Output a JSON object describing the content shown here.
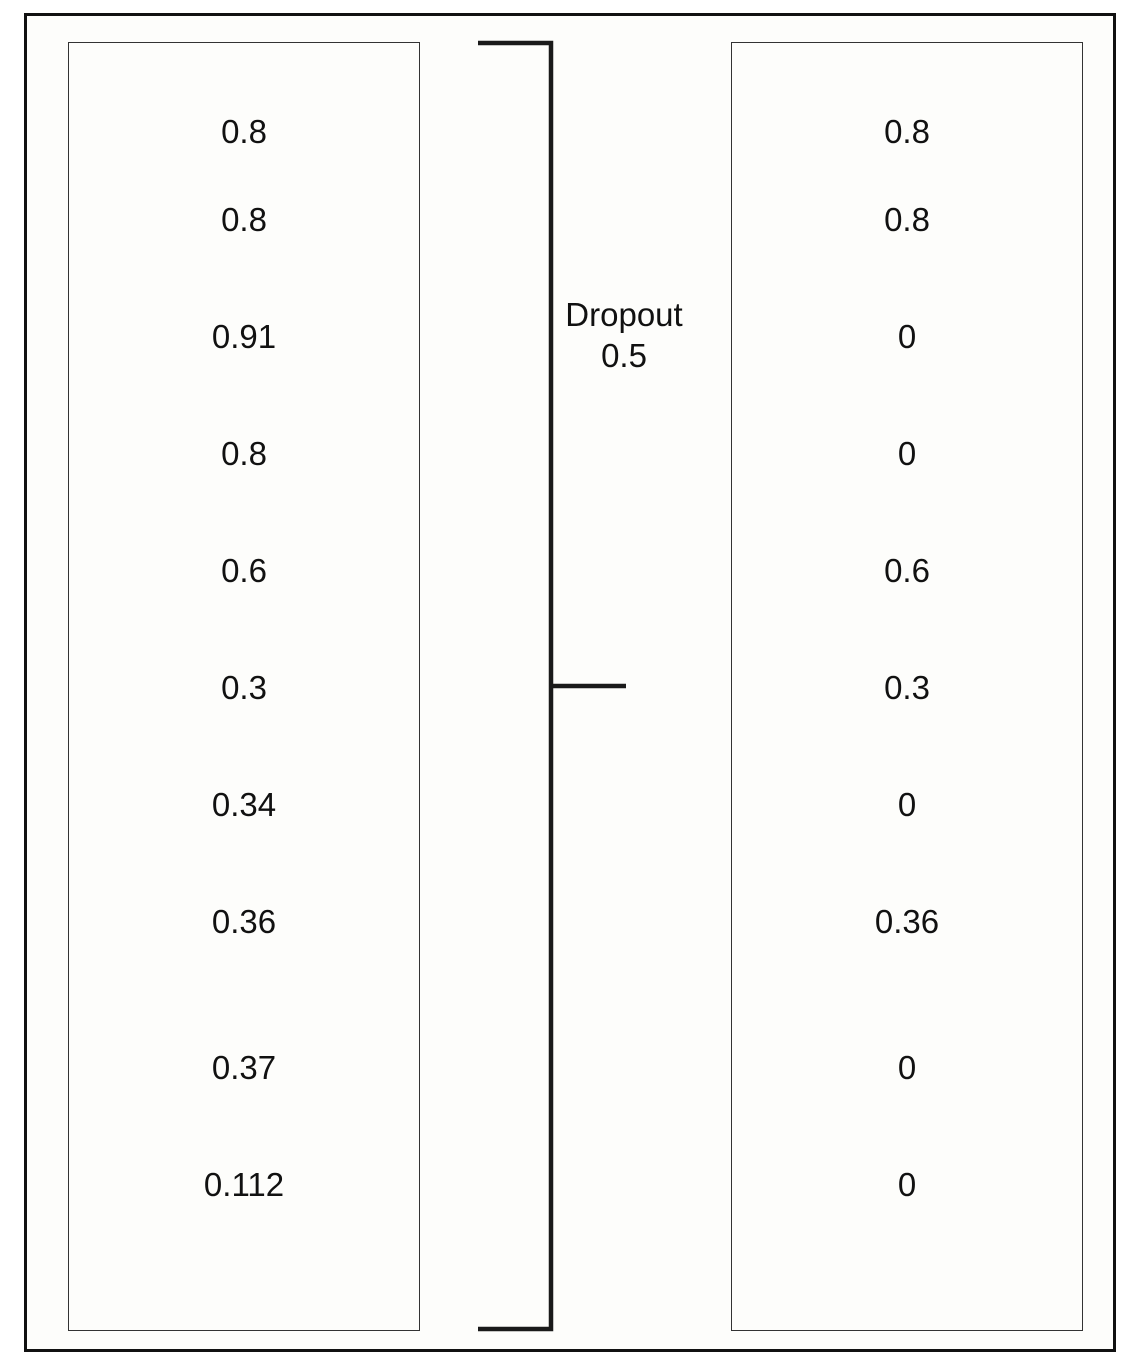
{
  "input_column": {
    "values": [
      "0.8",
      "0.8",
      "0.91",
      "0.8",
      "0.6",
      "0.3",
      "0.34",
      "0.36",
      "0.37",
      "0.112"
    ]
  },
  "output_column": {
    "values": [
      "0.8",
      "0.8",
      "0",
      "0",
      "0.6",
      "0.3",
      "0",
      "0.36",
      "0",
      "0"
    ]
  },
  "dropout": {
    "label": "Dropout",
    "rate": "0.5"
  }
}
